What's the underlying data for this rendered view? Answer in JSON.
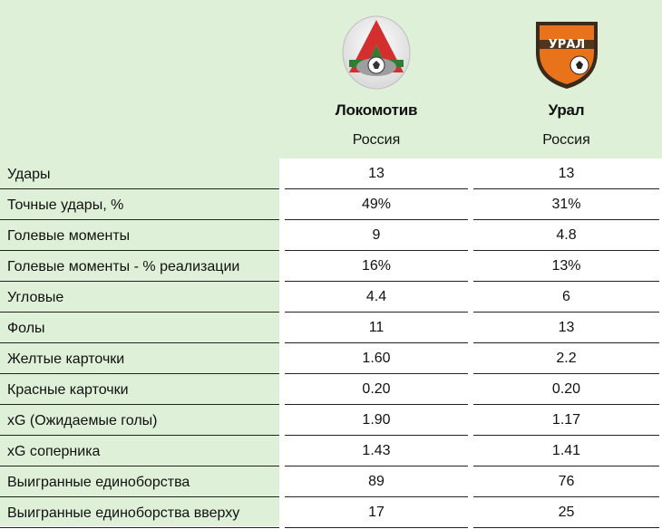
{
  "teams": [
    {
      "name": "Локомотив",
      "country": "Россия",
      "logo_icon": "lokomotiv-logo-icon",
      "logo_text": ""
    },
    {
      "name": "Урал",
      "country": "Россия",
      "logo_icon": "ural-logo-icon",
      "logo_text": "УРАЛ"
    }
  ],
  "rows": [
    {
      "label": "Удары",
      "home": "13",
      "away": "13"
    },
    {
      "label": "Точные удары, %",
      "home": "49%",
      "away": "31%"
    },
    {
      "label": "Голевые моменты",
      "home": "9",
      "away": "4.8"
    },
    {
      "label": "Голевые моменты - % реализации",
      "home": "16%",
      "away": "13%"
    },
    {
      "label": "Угловые",
      "home": "4.4",
      "away": "6"
    },
    {
      "label": "Фолы",
      "home": "11",
      "away": "13"
    },
    {
      "label": "Желтые карточки",
      "home": "1.60",
      "away": "2.2"
    },
    {
      "label": "Красные карточки",
      "home": "0.20",
      "away": "0.20"
    },
    {
      "label": "xG (Ожидаемые голы)",
      "home": "1.90",
      "away": "1.17"
    },
    {
      "label": "xG соперника",
      "home": "1.43",
      "away": "1.41"
    },
    {
      "label": "Выигранные единоборства",
      "home": "89",
      "away": "76"
    },
    {
      "label": "Выигранные единоборства вверху",
      "home": "17",
      "away": "25"
    }
  ],
  "colors": {
    "header_bg": "#dff0d8",
    "lokomotiv_red": "#d32f2f",
    "lokomotiv_green": "#2e7d32",
    "ural_orange": "#e8731a",
    "ural_dark": "#3a2a1c"
  }
}
